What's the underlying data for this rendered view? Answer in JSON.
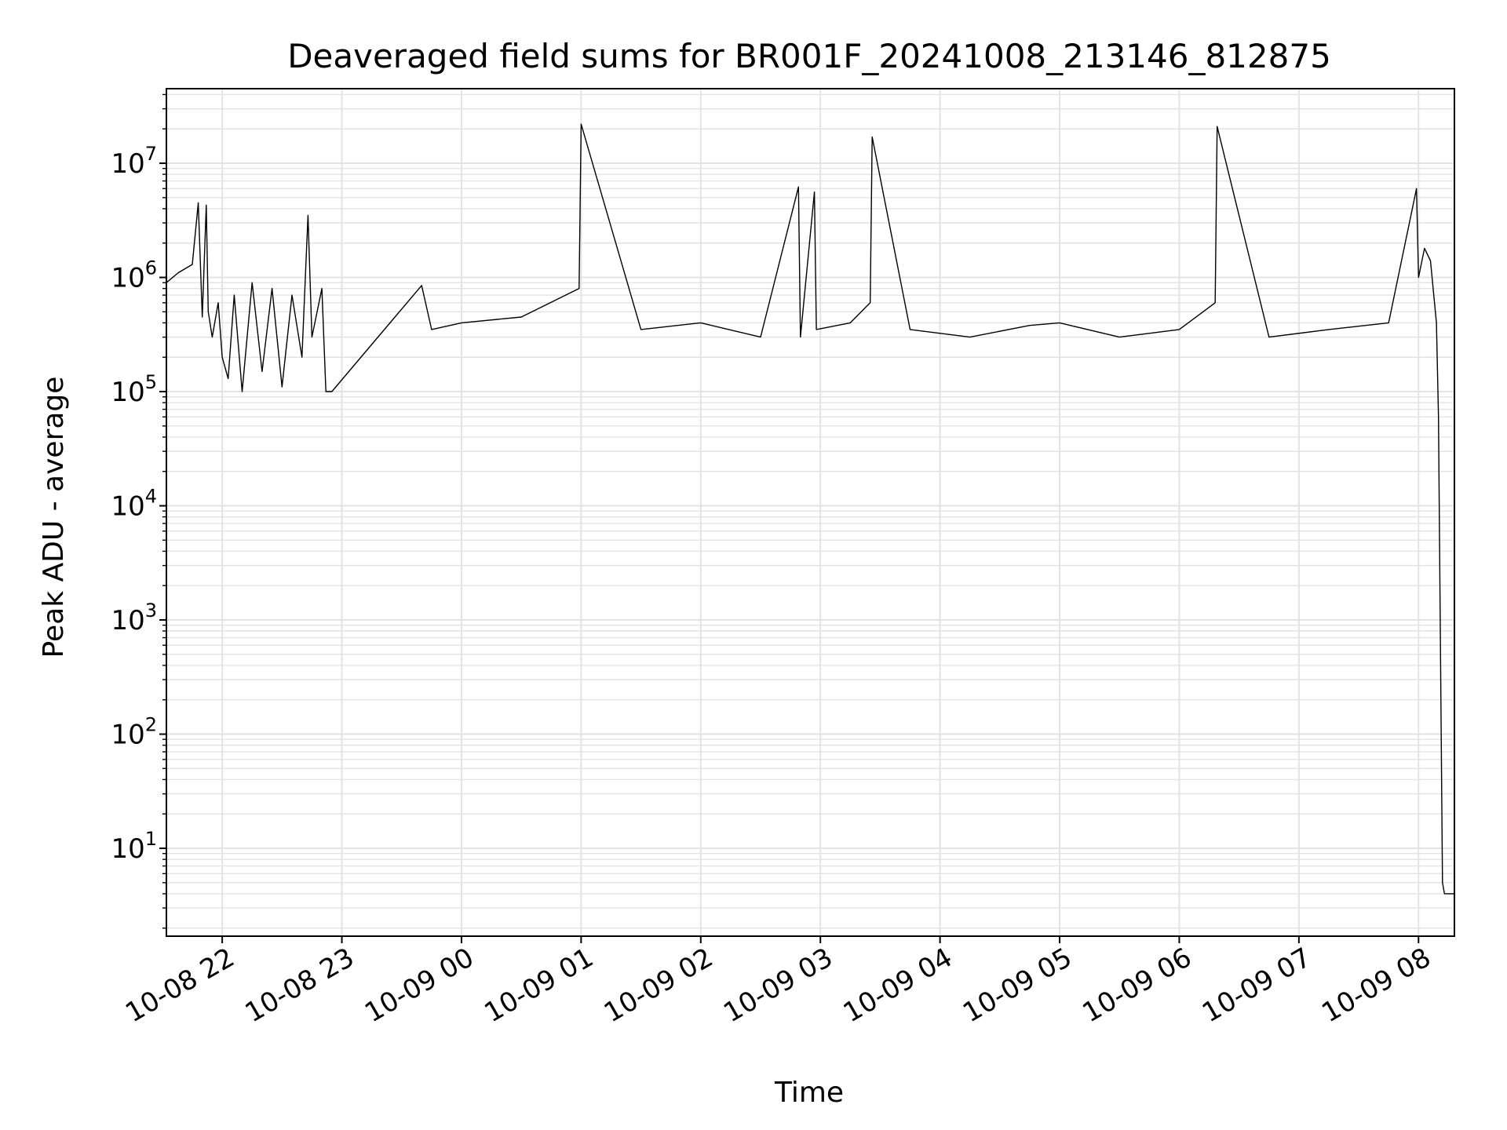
{
  "chart_data": {
    "type": "line",
    "title": "Deaveraged field sums for BR001F_20241008_213146_812875",
    "xlabel": "Time",
    "ylabel": "Peak ADU - average",
    "yscale": "log",
    "grid": true,
    "x_tick_labels": [
      "10-08 22",
      "10-08 23",
      "10-09 00",
      "10-09 01",
      "10-09 02",
      "10-09 03",
      "10-09 04",
      "10-09 05",
      "10-09 06",
      "10-09 07",
      "10-09 08"
    ],
    "y_tick_labels": [
      {
        "base": "10",
        "exp": "1"
      },
      {
        "base": "10",
        "exp": "2"
      },
      {
        "base": "10",
        "exp": "3"
      },
      {
        "base": "10",
        "exp": "4"
      },
      {
        "base": "10",
        "exp": "5"
      },
      {
        "base": "10",
        "exp": "6"
      },
      {
        "base": "10",
        "exp": "7"
      }
    ],
    "x_range": [
      "2024-10-08 21:32",
      "2024-10-09 08:18"
    ],
    "ylim": [
      1.7,
      45000000
    ],
    "colors": {
      "line": "#000000",
      "grid": "#e3e3e3"
    },
    "series": [
      {
        "x": [
          "2024-10-08 21:32",
          "2024-10-08 21:38",
          "2024-10-08 21:45",
          "2024-10-08 21:48",
          "2024-10-08 21:50",
          "2024-10-08 21:52",
          "2024-10-08 21:53",
          "2024-10-08 21:55",
          "2024-10-08 21:58",
          "2024-10-08 22:00",
          "2024-10-08 22:03",
          "2024-10-08 22:06",
          "2024-10-08 22:10",
          "2024-10-08 22:15",
          "2024-10-08 22:20",
          "2024-10-08 22:25",
          "2024-10-08 22:30",
          "2024-10-08 22:35",
          "2024-10-08 22:40",
          "2024-10-08 22:43",
          "2024-10-08 22:45",
          "2024-10-08 22:50",
          "2024-10-08 22:52",
          "2024-10-08 22:55",
          "2024-10-08 23:40",
          "2024-10-08 23:45",
          "2024-10-09 00:00",
          "2024-10-09 00:30",
          "2024-10-09 00:59",
          "2024-10-09 01:00",
          "2024-10-09 01:30",
          "2024-10-09 02:00",
          "2024-10-09 02:30",
          "2024-10-09 02:49",
          "2024-10-09 02:50",
          "2024-10-09 02:57",
          "2024-10-09 02:58",
          "2024-10-09 03:15",
          "2024-10-09 03:25",
          "2024-10-09 03:26",
          "2024-10-09 03:45",
          "2024-10-09 04:15",
          "2024-10-09 04:45",
          "2024-10-09 05:00",
          "2024-10-09 05:30",
          "2024-10-09 06:00",
          "2024-10-09 06:18",
          "2024-10-09 06:19",
          "2024-10-09 06:45",
          "2024-10-09 07:15",
          "2024-10-09 07:45",
          "2024-10-09 07:59",
          "2024-10-09 08:00",
          "2024-10-09 08:03",
          "2024-10-09 08:06",
          "2024-10-09 08:09",
          "2024-10-09 08:10",
          "2024-10-09 08:12",
          "2024-10-09 08:13",
          "2024-10-09 08:18"
        ],
        "y": [
          900000,
          1100000,
          1300000,
          4500000,
          450000,
          4300000,
          500000,
          300000,
          600000,
          200000,
          130000,
          700000,
          100000,
          900000,
          150000,
          800000,
          110000,
          700000,
          200000,
          3500000,
          300000,
          800000,
          100000,
          100000,
          850000,
          350000,
          400000,
          450000,
          800000,
          22000000,
          350000,
          400000,
          300000,
          6200000,
          300000,
          5600000,
          350000,
          400000,
          600000,
          17000000,
          350000,
          300000,
          380000,
          400000,
          300000,
          350000,
          600000,
          21000000,
          300000,
          350000,
          400000,
          6000000,
          1000000,
          1800000,
          1400000,
          400000,
          60000,
          5,
          4,
          4
        ]
      }
    ]
  }
}
